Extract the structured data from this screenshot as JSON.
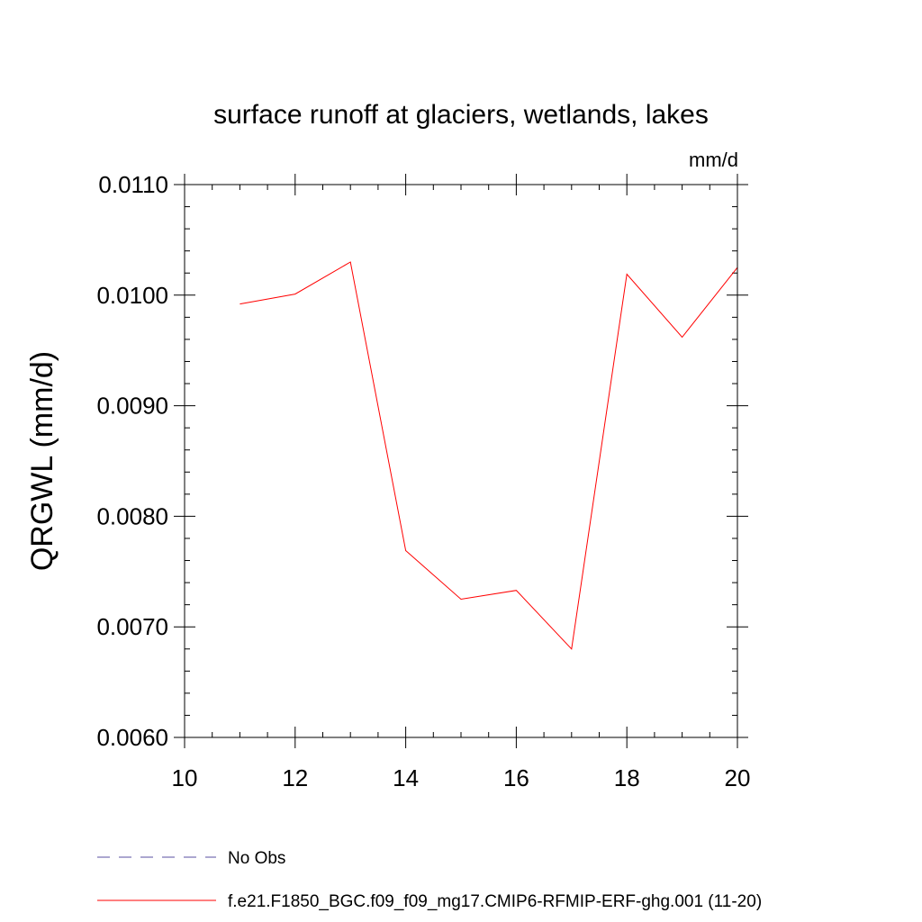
{
  "chart_data": {
    "type": "line",
    "title": "surface runoff at glaciers, wetlands, lakes",
    "units_label": "mm/d",
    "ylabel": "QRGWL  (mm/d)",
    "xlabel": "",
    "xlim": [
      10,
      20
    ],
    "ylim": [
      0.006,
      0.011
    ],
    "x_ticks": [
      10,
      12,
      14,
      16,
      18,
      20
    ],
    "x_tick_labels": [
      "10",
      "12",
      "14",
      "16",
      "18",
      "20"
    ],
    "y_ticks": [
      0.006,
      0.007,
      0.008,
      0.009,
      0.01,
      0.011
    ],
    "y_tick_labels": [
      "0.0060",
      "0.0070",
      "0.0080",
      "0.0090",
      "0.0100",
      "0.0110"
    ],
    "grid": false,
    "legend_position": "bottom",
    "series": [
      {
        "name": "No Obs",
        "color": "#5a4fa0",
        "dash": "dashed",
        "x": [],
        "y": []
      },
      {
        "name": "f.e21.F1850_BGC.f09_f09_mg17.CMIP6-RFMIP-ERF-ghg.001 (11-20)",
        "color": "#ff0000",
        "dash": "solid",
        "x": [
          11,
          12,
          13,
          14,
          15,
          16,
          17,
          18,
          19,
          20
        ],
        "y": [
          0.00992,
          0.01001,
          0.0103,
          0.00769,
          0.00725,
          0.00733,
          0.0068,
          0.01019,
          0.00962,
          0.01025
        ]
      }
    ]
  }
}
